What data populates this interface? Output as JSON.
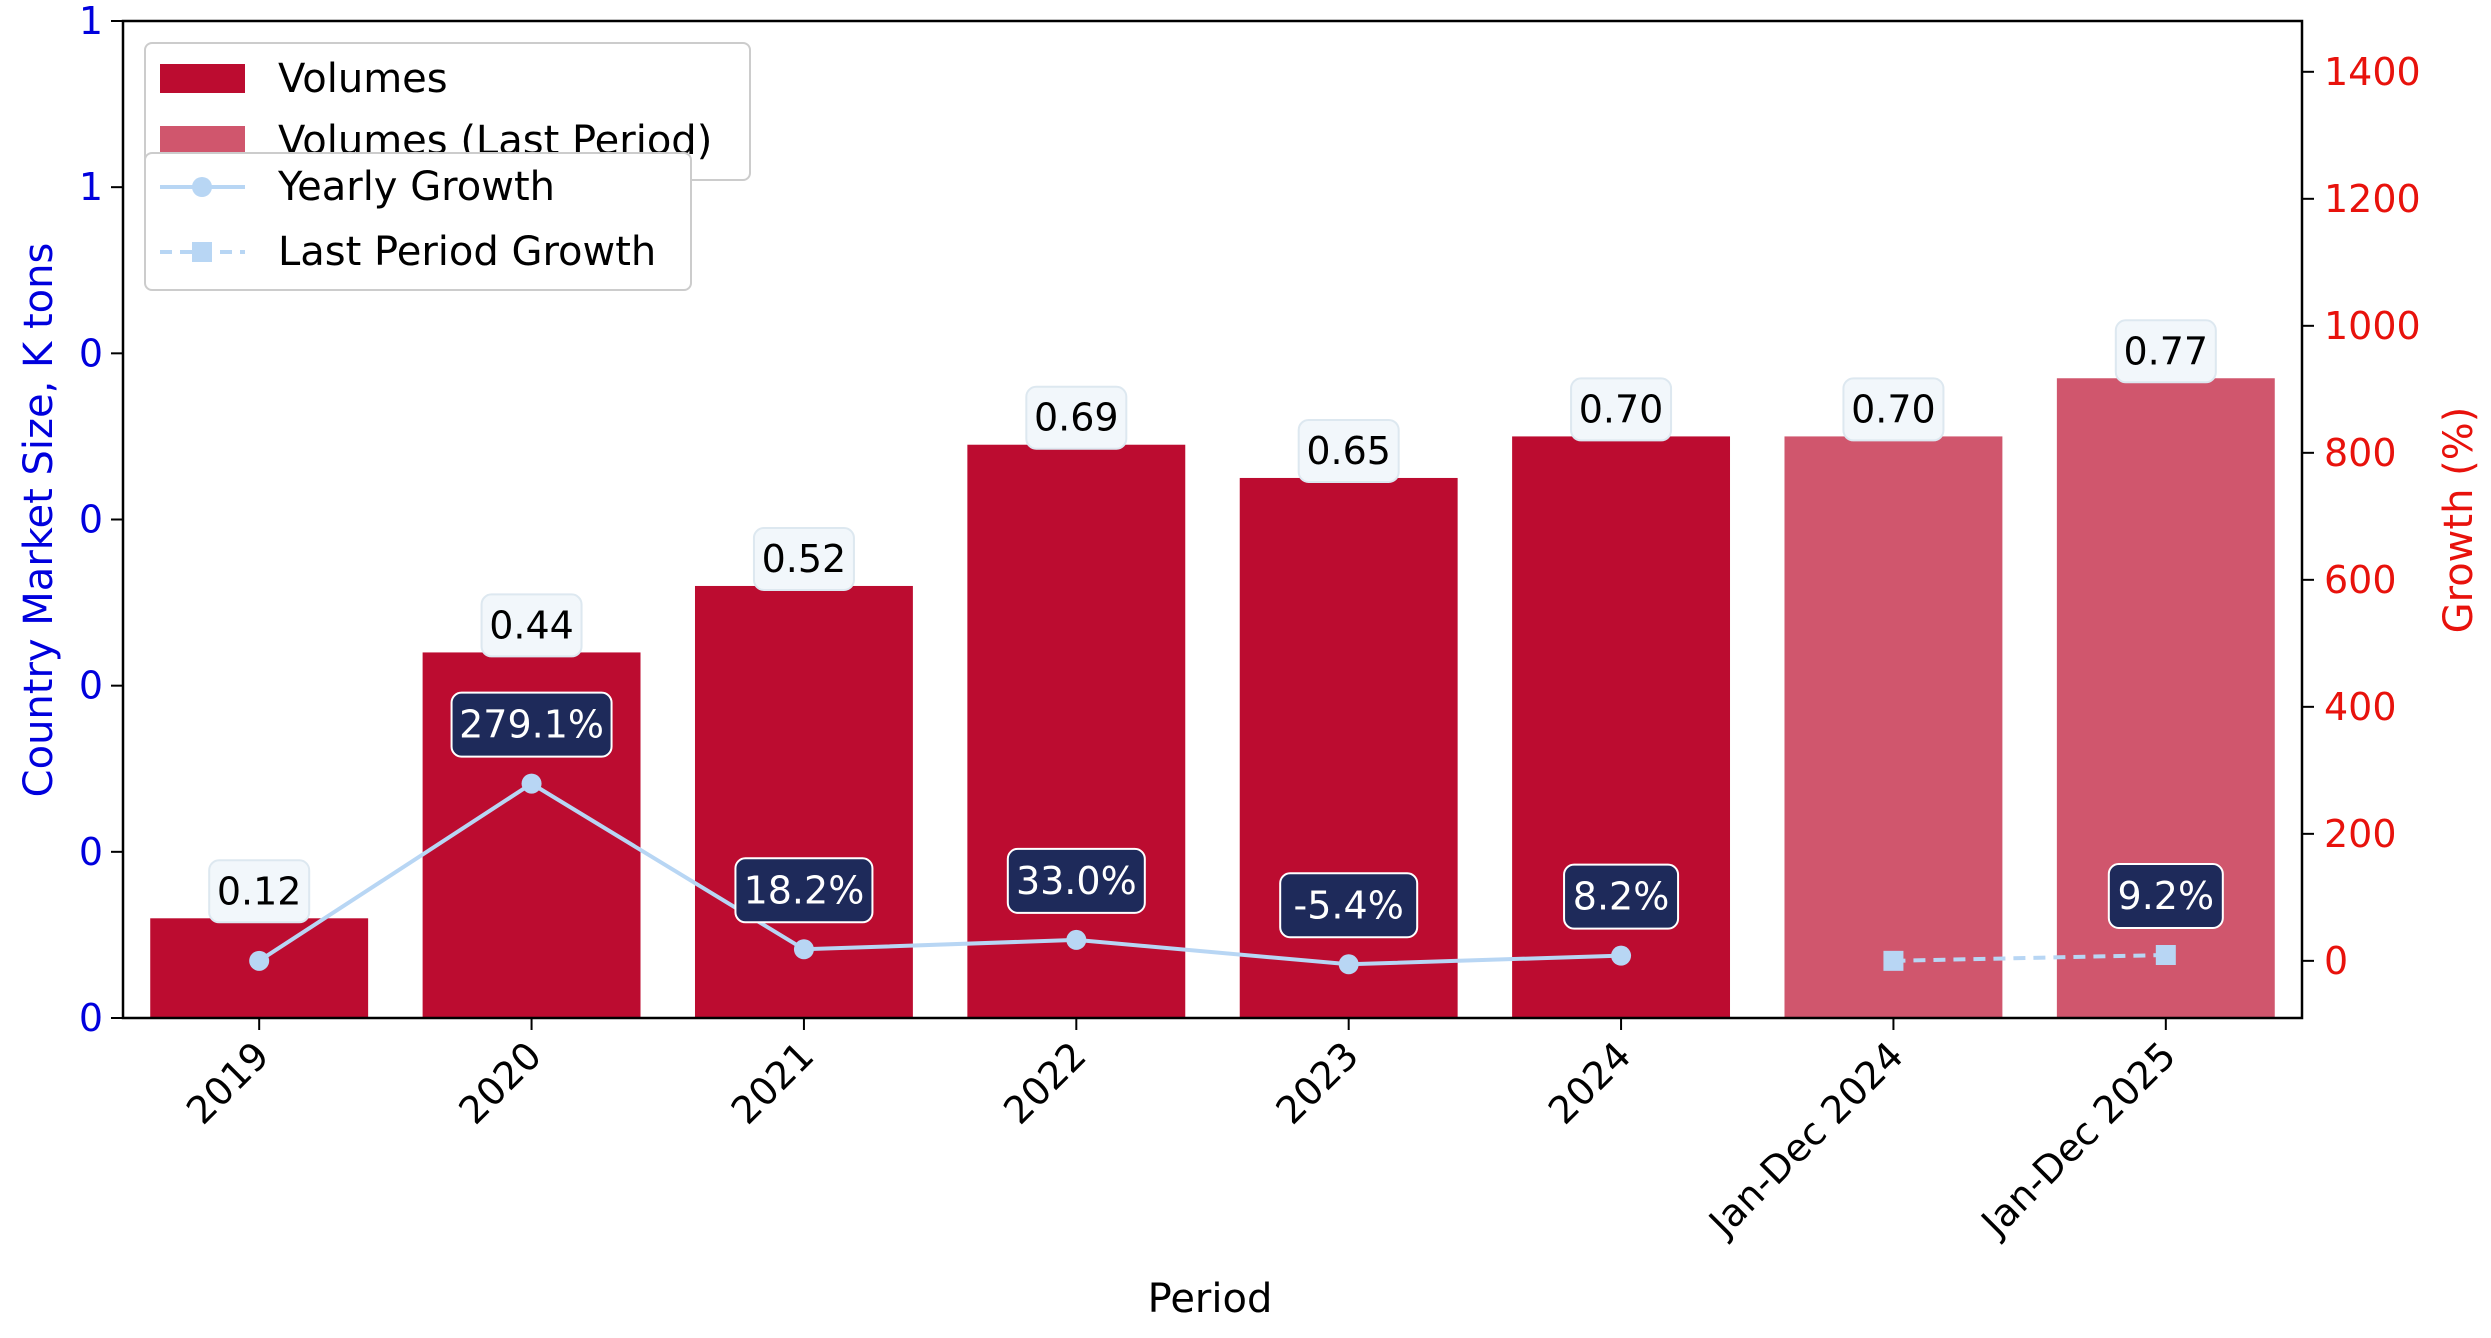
{
  "chart_data": {
    "type": "bar",
    "categories": [
      "2019",
      "2020",
      "2021",
      "2022",
      "2023",
      "2024",
      "Jan-Dec 2024",
      "Jan-Dec 2025"
    ],
    "xlabel": "Period",
    "ylabel": "Country Market Size, K tons",
    "y2label": "Growth (%)",
    "ylim": [
      0,
      1.2
    ],
    "y2lim": [
      -90,
      1480
    ],
    "y_tick_values": [
      0,
      0.2,
      0.4,
      0.6,
      0.8,
      1.0,
      1.2
    ],
    "y_tick_labels": [
      "0",
      "0",
      "0",
      "0",
      "0",
      "1",
      "1"
    ],
    "y2_ticks": [
      0,
      200,
      400,
      600,
      800,
      1000,
      1200,
      1400
    ],
    "series": [
      {
        "name": "Volumes",
        "type": "bar",
        "color": "#bc0c30",
        "values": [
          0.12,
          0.44,
          0.52,
          0.69,
          0.65,
          0.7,
          null,
          null
        ],
        "labels": [
          "0.12",
          "0.44",
          "0.52",
          "0.69",
          "0.65",
          "0.70",
          "",
          ""
        ]
      },
      {
        "name": "Volumes (Last Period)",
        "type": "bar",
        "color": "#d0566d",
        "values": [
          null,
          null,
          null,
          null,
          null,
          null,
          0.7,
          0.77
        ],
        "labels": [
          "",
          "",
          "",
          "",
          "",
          "",
          "0.70",
          "0.77"
        ]
      },
      {
        "name": "Yearly Growth",
        "type": "line",
        "axis": "right",
        "color": "#b8d6f4",
        "marker": "circle",
        "values": [
          0,
          279.1,
          18.2,
          33.0,
          -5.4,
          8.2,
          null,
          null
        ],
        "labels": [
          "",
          "279.1%",
          "18.2%",
          "33.0%",
          "-5.4%",
          "8.2%",
          "",
          ""
        ]
      },
      {
        "name": "Last Period Growth",
        "type": "line",
        "axis": "right",
        "linestyle": "dashed",
        "color": "#b8d6f4",
        "marker": "square",
        "values": [
          null,
          null,
          null,
          null,
          null,
          null,
          0,
          9.2
        ],
        "labels": [
          "",
          "",
          "",
          "",
          "",
          "",
          "",
          "9.2%"
        ]
      }
    ],
    "legend": "top-left",
    "grid": false
  },
  "colors": {
    "left_axis": "#0000dd",
    "right_axis": "#e8120c",
    "volume_label_bg": "#f2f7fb",
    "growth_label_bg": "#1e2a5a"
  }
}
